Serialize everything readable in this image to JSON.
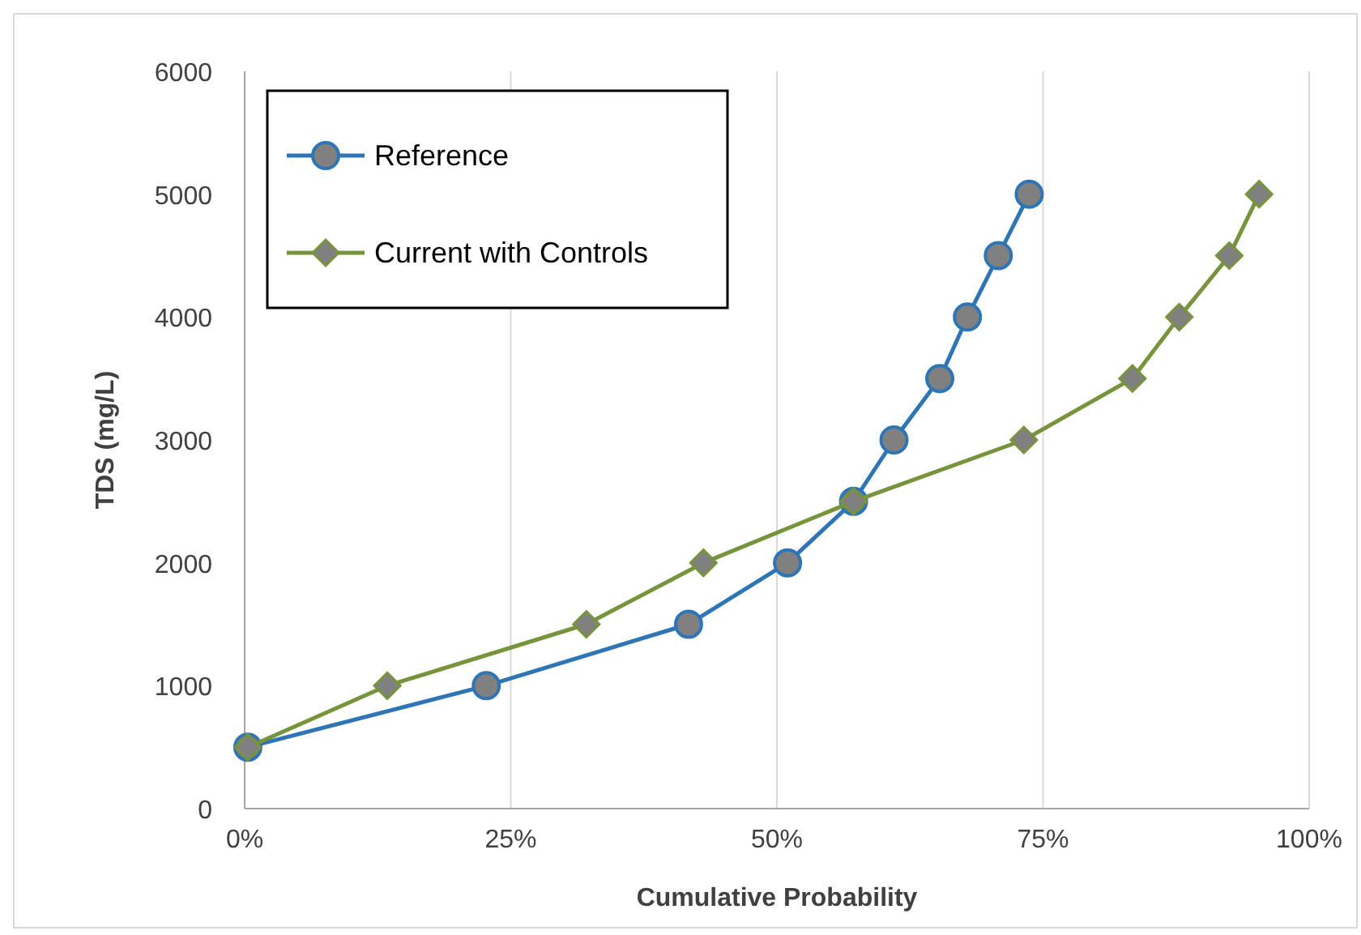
{
  "chart_data": {
    "type": "line",
    "xlabel": "Cumulative Probability",
    "ylabel": "TDS (mg/L)",
    "xlim": [
      0,
      100
    ],
    "xticks": [
      {
        "value": 0,
        "label": "0%"
      },
      {
        "value": 25,
        "label": "25%"
      },
      {
        "value": 50,
        "label": "50%"
      },
      {
        "value": 75,
        "label": "75%"
      },
      {
        "value": 100,
        "label": "100%"
      }
    ],
    "ylim": [
      0,
      6000
    ],
    "yticks": [
      0,
      1000,
      2000,
      3000,
      4000,
      5000,
      6000
    ],
    "grid": "x",
    "legend": "top left",
    "series": [
      {
        "name": "Reference",
        "color": "#2e75b6",
        "marker": "circle",
        "x": [
          0.3,
          22.7,
          41.7,
          51,
          57.2,
          61,
          65.3,
          67.9,
          70.8,
          73.7
        ],
        "values": [
          500,
          1000,
          1500,
          2000,
          2500,
          3000,
          3500,
          4000,
          4500,
          5000
        ]
      },
      {
        "name": "Current with Controls",
        "color": "#77933c",
        "marker": "diamond",
        "x": [
          0.3,
          13.4,
          32.1,
          43.1,
          57.2,
          73.2,
          83.4,
          87.8,
          92.5,
          95.3
        ],
        "values": [
          500,
          1000,
          1500,
          2000,
          2500,
          3000,
          3500,
          4000,
          4500,
          5000
        ]
      }
    ]
  }
}
